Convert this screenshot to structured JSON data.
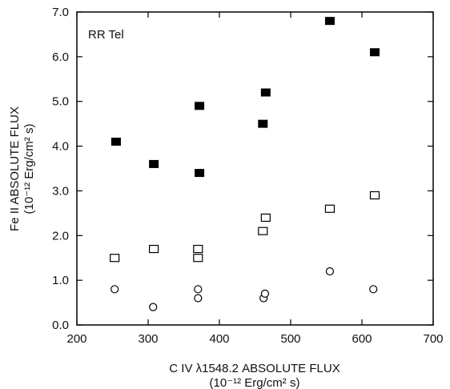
{
  "chart_data": {
    "type": "scatter",
    "annotation": "RR Tel",
    "xlabel_line1": "C IV  λ1548.2 ABSOLUTE FLUX",
    "xlabel_line2": "(10⁻¹² Erg/cm² s)",
    "ylabel_line1": "Fe II ABSOLUTE FLUX",
    "ylabel_line2": "(10⁻¹² Erg/cm² s)",
    "xlim": [
      200,
      700
    ],
    "ylim": [
      0.0,
      7.0
    ],
    "x_ticks": [
      200,
      300,
      400,
      500,
      600,
      700
    ],
    "x_tick_labels": [
      "200",
      "300",
      "400",
      "500",
      "600",
      "700"
    ],
    "y_ticks": [
      0,
      1,
      2,
      3,
      4,
      5,
      6,
      7
    ],
    "y_tick_labels": [
      "0.0",
      "1.0",
      "2.0",
      "3.0",
      "4.0",
      "5.0",
      "6.0",
      "7.0"
    ],
    "grid": false,
    "series": [
      {
        "marker": "filled-square",
        "points": [
          {
            "x": 255,
            "y": 4.1
          },
          {
            "x": 308,
            "y": 3.6
          },
          {
            "x": 372,
            "y": 3.4
          },
          {
            "x": 372,
            "y": 4.9
          },
          {
            "x": 461,
            "y": 4.5
          },
          {
            "x": 465,
            "y": 5.2
          },
          {
            "x": 555,
            "y": 6.8
          },
          {
            "x": 618,
            "y": 6.1
          }
        ]
      },
      {
        "marker": "open-square",
        "points": [
          {
            "x": 253,
            "y": 1.5
          },
          {
            "x": 308,
            "y": 1.7
          },
          {
            "x": 370,
            "y": 1.7
          },
          {
            "x": 370,
            "y": 1.5
          },
          {
            "x": 461,
            "y": 2.1
          },
          {
            "x": 465,
            "y": 2.4
          },
          {
            "x": 555,
            "y": 2.6
          },
          {
            "x": 618,
            "y": 2.9
          }
        ]
      },
      {
        "marker": "open-circle",
        "points": [
          {
            "x": 253,
            "y": 0.8
          },
          {
            "x": 307,
            "y": 0.4
          },
          {
            "x": 370,
            "y": 0.8
          },
          {
            "x": 370,
            "y": 0.6
          },
          {
            "x": 462,
            "y": 0.6
          },
          {
            "x": 464,
            "y": 0.7
          },
          {
            "x": 555,
            "y": 1.2
          },
          {
            "x": 616,
            "y": 0.8
          }
        ]
      }
    ]
  }
}
